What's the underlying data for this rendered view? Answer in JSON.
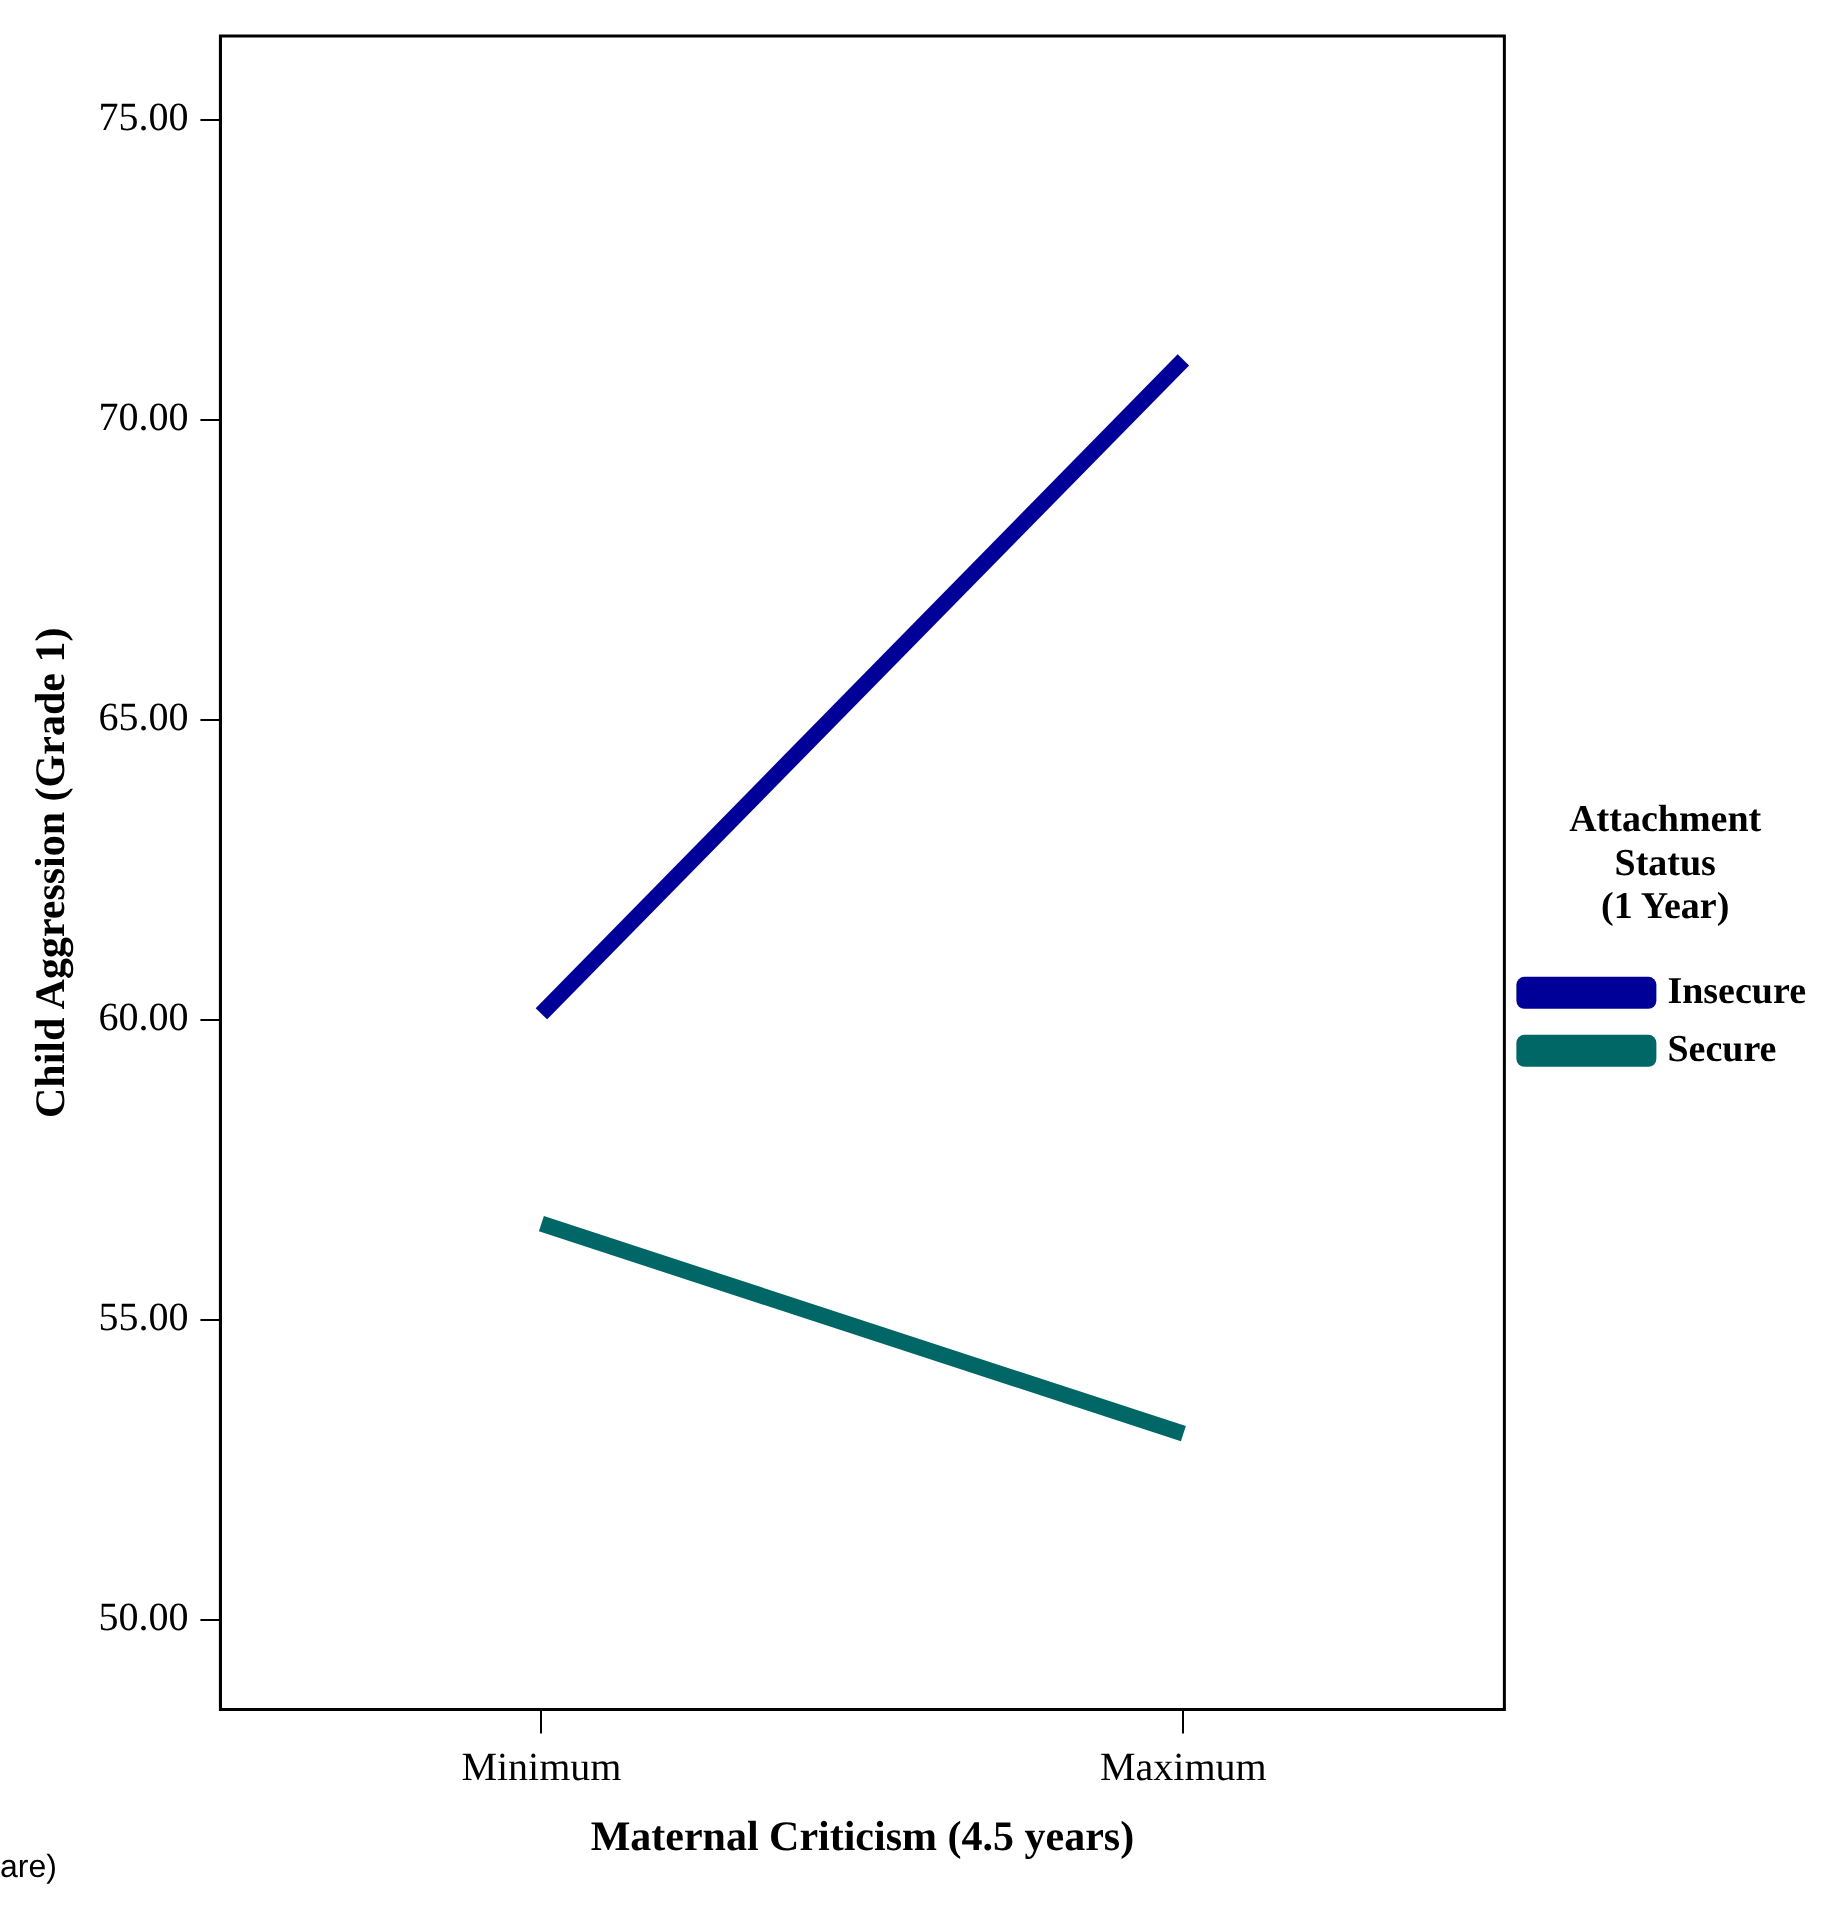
{
  "chart_data": {
    "type": "line",
    "xlabel": "Maternal Criticism (4.5 years)",
    "ylabel": "Child Aggression (Grade 1)",
    "legend_title": "Attachment Status (1 Year)",
    "categories": [
      "Minimum",
      "Maximum"
    ],
    "series": [
      {
        "name": "Insecure",
        "color": "#000099",
        "values": [
          60.1,
          71.0
        ]
      },
      {
        "name": "Secure",
        "color": "#006666",
        "values": [
          56.6,
          53.1
        ]
      }
    ],
    "ylim": [
      48.5,
      76.4
    ],
    "yticks": [
      {
        "value": 50,
        "label": "50.00"
      },
      {
        "value": 55,
        "label": "55.00"
      },
      {
        "value": 60,
        "label": "60.00"
      },
      {
        "value": 65,
        "label": "65.00"
      },
      {
        "value": 70,
        "label": "70.00"
      },
      {
        "value": 75,
        "label": "75.00"
      }
    ],
    "grid": false,
    "legend": "right",
    "marker": "none",
    "line_style": "solid",
    "annotations": [
      "are)"
    ]
  }
}
